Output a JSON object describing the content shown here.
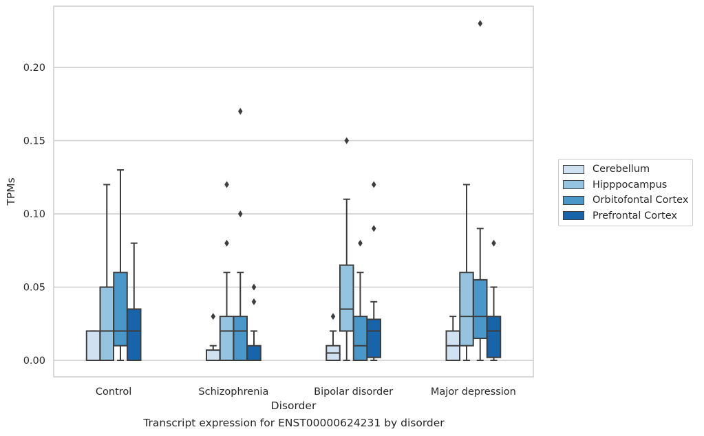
{
  "chart_data": {
    "type": "box",
    "caption": "Transcript expression for ENST00000624231 by disorder",
    "xlabel": "Disorder",
    "ylabel": "TPMs",
    "ylim": [
      -0.011,
      0.242
    ],
    "yticks": [
      0.0,
      0.05,
      0.1,
      0.15,
      0.2
    ],
    "ytick_labels": [
      "0.00",
      "0.05",
      "0.10",
      "0.15",
      "0.20"
    ],
    "categories": [
      "Control",
      "Schizophrenia",
      "Bipolar disorder",
      "Major depression"
    ],
    "grid": "horizontal",
    "legend_position": "right",
    "series": [
      {
        "name": "Cerebellum",
        "color": "#d0e1f2",
        "boxes": [
          {
            "whislo": 0.0,
            "q1": 0.0,
            "med": 0.0,
            "q3": 0.02,
            "whishi": 0.02,
            "fliers": []
          },
          {
            "whislo": 0.0,
            "q1": 0.0,
            "med": 0.0,
            "q3": 0.007,
            "whishi": 0.01,
            "fliers": [
              0.03
            ]
          },
          {
            "whislo": 0.0,
            "q1": 0.0,
            "med": 0.005,
            "q3": 0.01,
            "whishi": 0.02,
            "fliers": [
              0.03
            ]
          },
          {
            "whislo": 0.0,
            "q1": 0.0,
            "med": 0.01,
            "q3": 0.02,
            "whishi": 0.03,
            "fliers": []
          }
        ]
      },
      {
        "name": "Hipppocampus",
        "color": "#94c4df",
        "boxes": [
          {
            "whislo": 0.0,
            "q1": 0.0,
            "med": 0.02,
            "q3": 0.05,
            "whishi": 0.12,
            "fliers": []
          },
          {
            "whislo": 0.0,
            "q1": 0.0,
            "med": 0.02,
            "q3": 0.03,
            "whishi": 0.06,
            "fliers": [
              0.08,
              0.12
            ]
          },
          {
            "whislo": 0.0,
            "q1": 0.02,
            "med": 0.035,
            "q3": 0.065,
            "whishi": 0.11,
            "fliers": [
              0.15
            ]
          },
          {
            "whislo": 0.0,
            "q1": 0.01,
            "med": 0.03,
            "q3": 0.06,
            "whishi": 0.12,
            "fliers": []
          }
        ]
      },
      {
        "name": "Orbitofontal Cortex",
        "color": "#4a98c9",
        "boxes": [
          {
            "whislo": 0.0,
            "q1": 0.01,
            "med": 0.02,
            "q3": 0.06,
            "whishi": 0.13,
            "fliers": []
          },
          {
            "whislo": 0.0,
            "q1": 0.0,
            "med": 0.02,
            "q3": 0.03,
            "whishi": 0.06,
            "fliers": [
              0.1,
              0.17
            ]
          },
          {
            "whislo": 0.0,
            "q1": 0.0,
            "med": 0.01,
            "q3": 0.03,
            "whishi": 0.06,
            "fliers": [
              0.08
            ]
          },
          {
            "whislo": 0.0,
            "q1": 0.015,
            "med": 0.03,
            "q3": 0.055,
            "whishi": 0.09,
            "fliers": [
              0.23
            ]
          }
        ]
      },
      {
        "name": "Prefrontal Cortex",
        "color": "#1764ab",
        "boxes": [
          {
            "whislo": 0.0,
            "q1": 0.0,
            "med": 0.02,
            "q3": 0.035,
            "whishi": 0.08,
            "fliers": []
          },
          {
            "whislo": 0.0,
            "q1": 0.0,
            "med": 0.0,
            "q3": 0.01,
            "whishi": 0.02,
            "fliers": [
              0.04,
              0.05
            ]
          },
          {
            "whislo": 0.0,
            "q1": 0.002,
            "med": 0.02,
            "q3": 0.028,
            "whishi": 0.04,
            "fliers": [
              0.09,
              0.12
            ]
          },
          {
            "whislo": 0.0,
            "q1": 0.002,
            "med": 0.02,
            "q3": 0.03,
            "whishi": 0.05,
            "fliers": [
              0.08
            ]
          }
        ]
      }
    ],
    "colors": {
      "edge": "#3d3d3d",
      "grid": "#cccccc",
      "frame": "#cccccc",
      "text": "#262626"
    }
  }
}
